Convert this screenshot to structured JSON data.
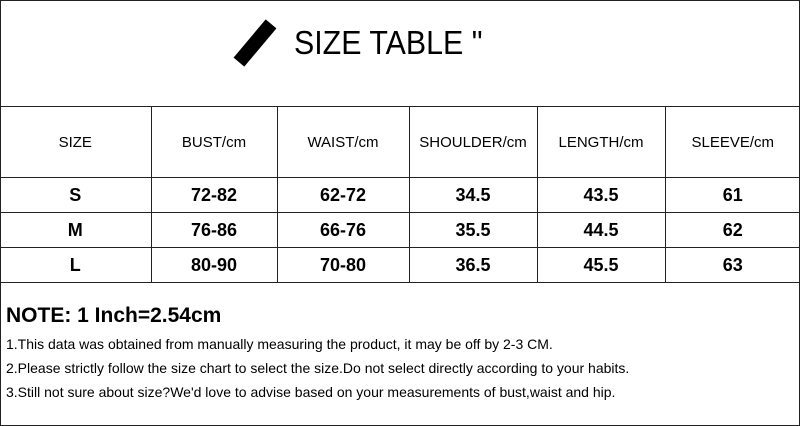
{
  "title": "SIZE TABLE \"",
  "table": {
    "headers": [
      "SIZE",
      "BUST/cm",
      "WAIST/cm",
      "SHOULDER/cm",
      "LENGTH/cm",
      "SLEEVE/cm"
    ],
    "rows": [
      [
        "S",
        "72-82",
        "62-72",
        "34.5",
        "43.5",
        "61"
      ],
      [
        "M",
        "76-86",
        "66-76",
        "35.5",
        "44.5",
        "62"
      ],
      [
        "L",
        "80-90",
        "70-80",
        "36.5",
        "45.5",
        "63"
      ]
    ]
  },
  "notes": {
    "title": "NOTE: 1 Inch=2.54cm",
    "items": [
      "1.This data was obtained from manually measuring the product, it may be off by 2-3 CM.",
      "2.Please strictly follow the size chart to select the size.Do not select directly according to your habits.",
      "3.Still not sure about size?We'd love to advise based on your measurements of bust,waist and hip."
    ]
  }
}
